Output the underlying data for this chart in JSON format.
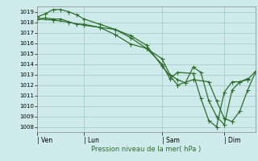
{
  "background_color": "#ceeaea",
  "grid_color": "#a8cccc",
  "line_color": "#2d6e2d",
  "marker_color": "#2d6e2d",
  "xlabel": "Pression niveau de la mer( hPa )",
  "ylim": [
    1007.5,
    1019.5
  ],
  "yticks": [
    1008,
    1009,
    1010,
    1011,
    1012,
    1013,
    1014,
    1015,
    1016,
    1017,
    1018,
    1019
  ],
  "xtick_labels": [
    "| Ven",
    "| Lun",
    "| Sam",
    "| Dim"
  ],
  "xtick_positions": [
    0,
    72,
    192,
    288
  ],
  "xlim": [
    0,
    336
  ],
  "series1_x": [
    0,
    12,
    24,
    36,
    48,
    60,
    72,
    96,
    120,
    144,
    168,
    192,
    204,
    216,
    228,
    240,
    252,
    264,
    276,
    288,
    300,
    312,
    324,
    336
  ],
  "series1_y": [
    1018.5,
    1018.8,
    1019.2,
    1019.2,
    1019.0,
    1018.7,
    1018.3,
    1017.8,
    1017.3,
    1016.5,
    1015.5,
    1014.5,
    1013.0,
    1012.5,
    1012.2,
    1013.7,
    1013.2,
    1010.5,
    1009.0,
    1008.2,
    1011.5,
    1012.3,
    1012.5,
    1013.3
  ],
  "series2_x": [
    0,
    12,
    24,
    36,
    60,
    72,
    96,
    120,
    144,
    168,
    192,
    204,
    216,
    240,
    252,
    264,
    276,
    288,
    300,
    312,
    324
  ],
  "series2_y": [
    1018.3,
    1018.4,
    1018.3,
    1018.3,
    1017.8,
    1017.8,
    1017.5,
    1016.8,
    1015.9,
    1015.5,
    1014.0,
    1012.6,
    1013.2,
    1013.1,
    1010.7,
    1008.6,
    1008.0,
    1011.3,
    1012.3,
    1012.3,
    1012.6
  ],
  "series3_x": [
    0,
    24,
    48,
    72,
    96,
    120,
    144,
    168,
    192,
    216,
    240,
    264,
    276,
    288,
    300,
    312,
    324,
    336
  ],
  "series3_y": [
    1018.3,
    1018.2,
    1018.0,
    1017.7,
    1017.5,
    1017.3,
    1016.7,
    1015.8,
    1013.8,
    1012.0,
    1012.5,
    1012.3,
    1010.5,
    1008.8,
    1008.5,
    1009.5,
    1011.5,
    1013.2
  ]
}
